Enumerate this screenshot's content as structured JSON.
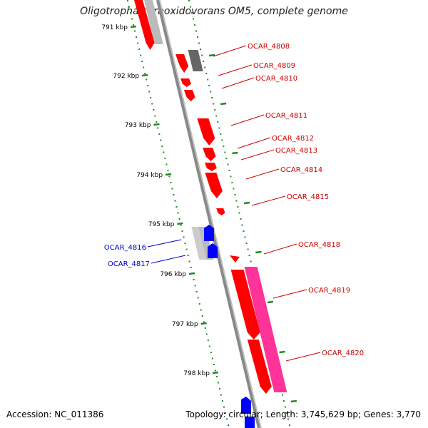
{
  "title": "Oligotropha carboxidovorans OM5, complete genome",
  "footer": {
    "accession": "Accession: NC_011386",
    "topology": "Topology: circular; Length: 3,745,629 bp; Genes: 3,770"
  },
  "colors": {
    "forward_gene": "#ff0000",
    "reverse_gene": "#0000ff",
    "highlight_gene": "#ff3399",
    "grey_gene": "#bbbbbb",
    "dark_gene": "#666666",
    "tick": "#228822",
    "backbone": "#888888",
    "forward_label": "#cc0000",
    "reverse_label": "#0000cc"
  },
  "scale_ticks": [
    {
      "label": "791 kbp"
    },
    {
      "label": "792 kbp"
    },
    {
      "label": "793 kbp"
    },
    {
      "label": "794 kbp"
    },
    {
      "label": "795 kbp"
    },
    {
      "label": "796 kbp"
    },
    {
      "label": "797 kbp"
    },
    {
      "label": "798 kbp"
    }
  ],
  "gene_labels": [
    {
      "name": "OCAR_4808",
      "strand": "forward"
    },
    {
      "name": "OCAR_4809",
      "strand": "forward"
    },
    {
      "name": "OCAR_4810",
      "strand": "forward"
    },
    {
      "name": "OCAR_4811",
      "strand": "forward"
    },
    {
      "name": "OCAR_4812",
      "strand": "forward"
    },
    {
      "name": "OCAR_4813",
      "strand": "forward"
    },
    {
      "name": "OCAR_4814",
      "strand": "forward"
    },
    {
      "name": "OCAR_4815",
      "strand": "forward"
    },
    {
      "name": "OCAR_4818",
      "strand": "forward"
    },
    {
      "name": "OCAR_4819",
      "strand": "forward"
    },
    {
      "name": "OCAR_4820",
      "strand": "forward"
    },
    {
      "name": "OCAR_4816",
      "strand": "reverse"
    },
    {
      "name": "OCAR_4817",
      "strand": "reverse"
    }
  ]
}
